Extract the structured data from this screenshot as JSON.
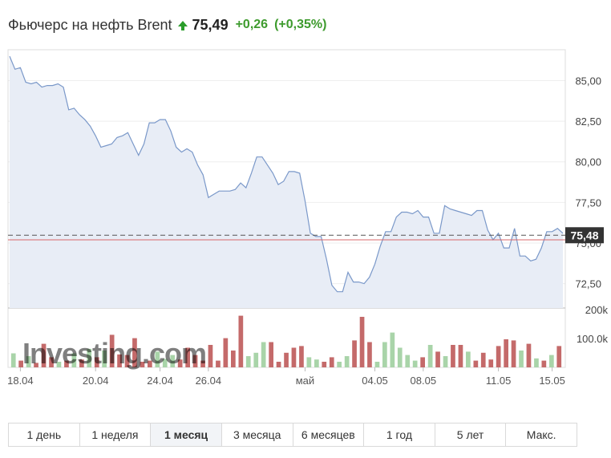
{
  "header": {
    "title": "Фьючерс на нефть Brent",
    "price": "75,49",
    "change": "+0,26",
    "change_pct": "(+0,35%)",
    "direction_icon": "up-arrow-icon",
    "up_color": "#3e9b2e"
  },
  "watermark": "Investing.com",
  "current_price_label": "75,48",
  "periods": [
    {
      "label": "1 день"
    },
    {
      "label": "1 неделя"
    },
    {
      "label": "1 месяц",
      "active": true
    },
    {
      "label": "3 месяца"
    },
    {
      "label": "6 месяцев"
    },
    {
      "label": "1 год"
    },
    {
      "label": "5 лет"
    },
    {
      "label": "Макс."
    }
  ],
  "chart_data": {
    "type": "area",
    "series": [
      {
        "values": [
          86.5,
          85.7,
          85.8,
          84.9,
          84.8,
          84.9,
          84.6,
          84.7,
          84.7,
          84.8,
          84.6,
          83.2,
          83.3,
          82.9,
          82.6,
          82.2,
          81.6,
          80.9,
          81.0,
          81.1,
          81.5,
          81.6,
          81.8,
          81.1,
          80.4,
          81.1,
          82.4,
          82.4,
          82.6,
          82.6,
          81.9,
          80.9,
          80.6,
          80.8,
          80.6,
          79.8,
          79.2,
          77.8,
          78.0,
          78.2,
          78.2,
          78.2,
          78.3,
          78.7,
          78.4,
          79.3,
          80.3,
          80.3,
          79.8,
          79.3,
          78.6,
          78.8,
          79.4,
          79.4,
          79.3,
          77.6,
          75.6,
          75.4,
          75.4,
          74.0,
          72.4,
          72.0,
          72.0,
          73.2,
          72.6,
          72.6,
          72.5,
          72.9,
          73.7,
          74.8,
          75.7,
          75.7,
          76.6,
          76.9,
          76.9,
          76.8,
          77.0,
          76.6,
          76.6,
          75.6,
          75.6,
          77.3,
          77.1,
          77.0,
          76.9,
          76.8,
          76.7,
          77.0,
          77.0,
          75.8,
          75.2,
          75.6,
          74.7,
          74.7,
          75.9,
          74.2,
          74.2,
          73.9,
          74.0,
          74.7,
          75.7,
          75.7,
          75.9,
          75.6
        ]
      }
    ],
    "volume": [
      25,
      12,
      20,
      8,
      42,
      18,
      10,
      12,
      25,
      14,
      33,
      18,
      30,
      58,
      23,
      22,
      52,
      10,
      12,
      28,
      15,
      22,
      14,
      35,
      22,
      12,
      40,
      12,
      52,
      30,
      92,
      20,
      26,
      45,
      45,
      10,
      26,
      35,
      38,
      18,
      14,
      10,
      18,
      10,
      20,
      48,
      90,
      45,
      10,
      45,
      62,
      35,
      22,
      12,
      18,
      40,
      28,
      20,
      40,
      40,
      28,
      12,
      26,
      14,
      38,
      50,
      48,
      30,
      42,
      16,
      12,
      22,
      38
    ],
    "volume_up": [
      true,
      false,
      true,
      false,
      false,
      false,
      true,
      false,
      true,
      false,
      true,
      false,
      true,
      false,
      false,
      false,
      false,
      false,
      false,
      true,
      true,
      true,
      false,
      false,
      false,
      false,
      false,
      false,
      false,
      false,
      false,
      true,
      true,
      true,
      false,
      false,
      false,
      false,
      false,
      true,
      true,
      false,
      false,
      true,
      true,
      false,
      false,
      false,
      true,
      true,
      true,
      true,
      true,
      true,
      false,
      true,
      false,
      true,
      false,
      false,
      true,
      false,
      false,
      false,
      false,
      false,
      false,
      true,
      false,
      true,
      false,
      true,
      false
    ],
    "ylim": [
      71.0,
      86.9
    ],
    "y_ticks": [
      "85,00",
      "82,50",
      "80,00",
      "77,50",
      "75,00",
      "72,50"
    ],
    "y_tick_values": [
      85.0,
      82.5,
      80.0,
      77.5,
      75.0,
      72.5
    ],
    "volume_ticks": [
      "200k",
      "100.0k"
    ],
    "volume_tick_values": [
      200,
      100
    ],
    "volume_max": 250,
    "x_ticks": [
      "18.04",
      "20.04",
      "24.04",
      "26.04",
      "май",
      "04.05",
      "08.05",
      "11.05",
      "15.05"
    ],
    "x_tick_index": [
      2,
      16,
      28,
      37,
      55,
      68,
      77,
      91,
      101
    ],
    "last_value": 75.48,
    "reference_value": 75.2,
    "line_color": "#7a98c9",
    "fill_color": "#e8edf6",
    "up_volume_color": "#a9d4a9",
    "down_volume_color": "#c46a6a",
    "reference_color": "#d9686b",
    "grid": true
  }
}
